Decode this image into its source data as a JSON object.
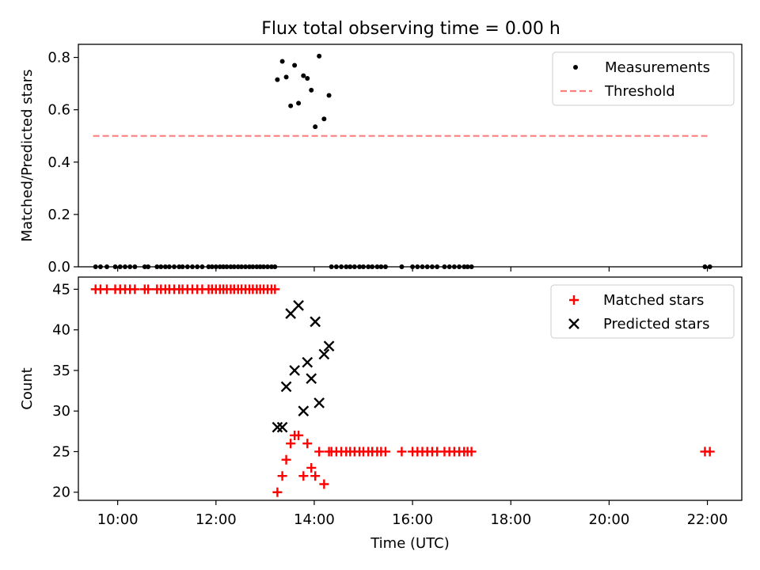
{
  "title": "Flux total observing time = 0.00 h",
  "chart_data": [
    {
      "type": "scatter",
      "ylabel": "Matched/Predicted stars",
      "xlim": [
        9.2,
        22.7
      ],
      "ylim": [
        0,
        0.85
      ],
      "yticks": [
        "0.0",
        "0.2",
        "0.4",
        "0.6",
        "0.8"
      ],
      "legend_position": "top-right",
      "legend": [
        "Measurements",
        "Threshold"
      ],
      "series": [
        {
          "name": "Measurements",
          "style": "dot",
          "color": "#000000",
          "points": [
            [
              13.25,
              0.715
            ],
            [
              13.35,
              0.785
            ],
            [
              13.43,
              0.725
            ],
            [
              13.52,
              0.615
            ],
            [
              13.6,
              0.77
            ],
            [
              13.68,
              0.625
            ],
            [
              13.78,
              0.73
            ],
            [
              13.86,
              0.72
            ],
            [
              13.94,
              0.675
            ],
            [
              14.02,
              0.535
            ],
            [
              14.1,
              0.805
            ],
            [
              14.2,
              0.565
            ],
            [
              14.3,
              0.655
            ],
            [
              9.55,
              0
            ],
            [
              9.65,
              0
            ],
            [
              9.78,
              0
            ],
            [
              9.95,
              0
            ],
            [
              10.05,
              0
            ],
            [
              10.15,
              0
            ],
            [
              10.25,
              0
            ],
            [
              10.35,
              0
            ],
            [
              10.55,
              0
            ],
            [
              10.62,
              0
            ],
            [
              10.8,
              0
            ],
            [
              10.88,
              0
            ],
            [
              10.97,
              0
            ],
            [
              11.05,
              0
            ],
            [
              11.15,
              0
            ],
            [
              11.25,
              0
            ],
            [
              11.32,
              0
            ],
            [
              11.42,
              0
            ],
            [
              11.52,
              0
            ],
            [
              11.62,
              0
            ],
            [
              11.72,
              0
            ],
            [
              11.85,
              0
            ],
            [
              11.92,
              0
            ],
            [
              12.0,
              0
            ],
            [
              12.08,
              0
            ],
            [
              12.15,
              0
            ],
            [
              12.22,
              0
            ],
            [
              12.3,
              0
            ],
            [
              12.37,
              0
            ],
            [
              12.45,
              0
            ],
            [
              12.52,
              0
            ],
            [
              12.6,
              0
            ],
            [
              12.68,
              0
            ],
            [
              12.75,
              0
            ],
            [
              12.83,
              0
            ],
            [
              12.9,
              0
            ],
            [
              12.97,
              0
            ],
            [
              13.05,
              0
            ],
            [
              13.13,
              0
            ],
            [
              13.2,
              0
            ],
            [
              14.35,
              0
            ],
            [
              14.45,
              0
            ],
            [
              14.55,
              0
            ],
            [
              14.65,
              0
            ],
            [
              14.73,
              0
            ],
            [
              14.82,
              0
            ],
            [
              14.92,
              0
            ],
            [
              15.0,
              0
            ],
            [
              15.1,
              0
            ],
            [
              15.18,
              0
            ],
            [
              15.28,
              0
            ],
            [
              15.36,
              0
            ],
            [
              15.45,
              0
            ],
            [
              15.78,
              0
            ],
            [
              16.0,
              0
            ],
            [
              16.1,
              0
            ],
            [
              16.2,
              0
            ],
            [
              16.3,
              0
            ],
            [
              16.4,
              0
            ],
            [
              16.5,
              0
            ],
            [
              16.65,
              0
            ],
            [
              16.75,
              0
            ],
            [
              16.85,
              0
            ],
            [
              16.95,
              0
            ],
            [
              17.05,
              0
            ],
            [
              17.12,
              0
            ],
            [
              17.2,
              0
            ],
            [
              21.95,
              0
            ],
            [
              22.05,
              0
            ]
          ]
        },
        {
          "name": "Threshold",
          "style": "dashed-line",
          "color": "#ff7f7f",
          "points": [
            [
              9.5,
              0.5
            ],
            [
              22.0,
              0.5
            ]
          ]
        }
      ]
    },
    {
      "type": "scatter",
      "xlabel": "Time (UTC)",
      "ylabel": "Count",
      "xlim": [
        9.2,
        22.7
      ],
      "ylim": [
        19,
        46.5
      ],
      "xticks": [
        "10:00",
        "12:00",
        "14:00",
        "16:00",
        "18:00",
        "20:00",
        "22:00"
      ],
      "xtick_values": [
        10,
        12,
        14,
        16,
        18,
        20,
        22
      ],
      "yticks": [
        "20",
        "25",
        "30",
        "35",
        "40",
        "45"
      ],
      "legend_position": "top-right",
      "legend": [
        "Matched stars",
        "Predicted stars"
      ],
      "series": [
        {
          "name": "Matched stars",
          "style": "plus",
          "color": "#ff0000",
          "points": [
            [
              9.55,
              45
            ],
            [
              9.65,
              45
            ],
            [
              9.78,
              45
            ],
            [
              9.95,
              45
            ],
            [
              10.05,
              45
            ],
            [
              10.15,
              45
            ],
            [
              10.25,
              45
            ],
            [
              10.35,
              45
            ],
            [
              10.55,
              45
            ],
            [
              10.62,
              45
            ],
            [
              10.8,
              45
            ],
            [
              10.88,
              45
            ],
            [
              10.97,
              45
            ],
            [
              11.05,
              45
            ],
            [
              11.15,
              45
            ],
            [
              11.25,
              45
            ],
            [
              11.32,
              45
            ],
            [
              11.42,
              45
            ],
            [
              11.52,
              45
            ],
            [
              11.62,
              45
            ],
            [
              11.72,
              45
            ],
            [
              11.85,
              45
            ],
            [
              11.92,
              45
            ],
            [
              12.0,
              45
            ],
            [
              12.08,
              45
            ],
            [
              12.15,
              45
            ],
            [
              12.22,
              45
            ],
            [
              12.3,
              45
            ],
            [
              12.37,
              45
            ],
            [
              12.45,
              45
            ],
            [
              12.52,
              45
            ],
            [
              12.6,
              45
            ],
            [
              12.68,
              45
            ],
            [
              12.75,
              45
            ],
            [
              12.83,
              45
            ],
            [
              12.9,
              45
            ],
            [
              12.97,
              45
            ],
            [
              13.05,
              45
            ],
            [
              13.13,
              45
            ],
            [
              13.2,
              45
            ],
            [
              13.25,
              20
            ],
            [
              13.35,
              22
            ],
            [
              13.43,
              24
            ],
            [
              13.52,
              26
            ],
            [
              13.6,
              27
            ],
            [
              13.68,
              27
            ],
            [
              13.78,
              22
            ],
            [
              13.86,
              26
            ],
            [
              13.94,
              23
            ],
            [
              14.02,
              22
            ],
            [
              14.1,
              25
            ],
            [
              14.2,
              21
            ],
            [
              14.3,
              25
            ],
            [
              14.35,
              25
            ],
            [
              14.45,
              25
            ],
            [
              14.55,
              25
            ],
            [
              14.65,
              25
            ],
            [
              14.73,
              25
            ],
            [
              14.82,
              25
            ],
            [
              14.92,
              25
            ],
            [
              15.0,
              25
            ],
            [
              15.1,
              25
            ],
            [
              15.18,
              25
            ],
            [
              15.28,
              25
            ],
            [
              15.36,
              25
            ],
            [
              15.45,
              25
            ],
            [
              15.78,
              25
            ],
            [
              16.0,
              25
            ],
            [
              16.1,
              25
            ],
            [
              16.2,
              25
            ],
            [
              16.3,
              25
            ],
            [
              16.4,
              25
            ],
            [
              16.5,
              25
            ],
            [
              16.65,
              25
            ],
            [
              16.75,
              25
            ],
            [
              16.85,
              25
            ],
            [
              16.95,
              25
            ],
            [
              17.05,
              25
            ],
            [
              17.12,
              25
            ],
            [
              17.2,
              25
            ],
            [
              21.95,
              25
            ],
            [
              22.05,
              25
            ]
          ]
        },
        {
          "name": "Predicted stars",
          "style": "x",
          "color": "#000000",
          "points": [
            [
              13.25,
              28
            ],
            [
              13.35,
              28
            ],
            [
              13.43,
              33
            ],
            [
              13.52,
              42
            ],
            [
              13.6,
              35
            ],
            [
              13.68,
              43
            ],
            [
              13.78,
              30
            ],
            [
              13.86,
              36
            ],
            [
              13.94,
              34
            ],
            [
              14.02,
              41
            ],
            [
              14.1,
              31
            ],
            [
              14.2,
              37
            ],
            [
              14.3,
              38
            ]
          ]
        }
      ]
    }
  ]
}
